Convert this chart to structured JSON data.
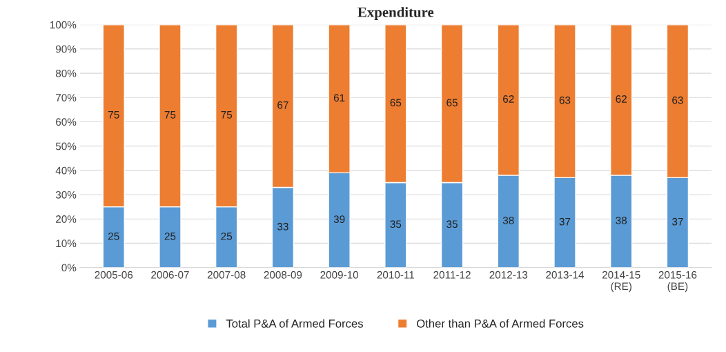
{
  "chart_data": {
    "type": "bar",
    "title": "Expenditure",
    "stacked": true,
    "categories": [
      "2005-06",
      "2006-07",
      "2007-08",
      "2008-09",
      "2009-10",
      "2010-11",
      "2011-12",
      "2012-13",
      "2013-14",
      "2014-15\n(RE)",
      "2015-16\n(BE)"
    ],
    "series": [
      {
        "name": "Total P&A of Armed Forces",
        "color": "#5b9bd5",
        "values": [
          25,
          25,
          25,
          33,
          39,
          35,
          35,
          38,
          37,
          38,
          37
        ]
      },
      {
        "name": "Other than P&A of Armed Forces",
        "color": "#ed7d31",
        "values": [
          75,
          75,
          75,
          67,
          61,
          65,
          65,
          62,
          63,
          62,
          63
        ]
      }
    ],
    "ylim": [
      0,
      100
    ],
    "yticks": [
      {
        "value": 0,
        "label": "0%"
      },
      {
        "value": 10,
        "label": "10%"
      },
      {
        "value": 20,
        "label": "20%"
      },
      {
        "value": 30,
        "label": "30%"
      },
      {
        "value": 40,
        "label": "40%"
      },
      {
        "value": 50,
        "label": "50%"
      },
      {
        "value": 60,
        "label": "60%"
      },
      {
        "value": 70,
        "label": "70%"
      },
      {
        "value": 80,
        "label": "80%"
      },
      {
        "value": 90,
        "label": "90%"
      },
      {
        "value": 100,
        "label": "100%"
      }
    ],
    "grid": "y",
    "legend": "bottom",
    "data_labels": true
  }
}
